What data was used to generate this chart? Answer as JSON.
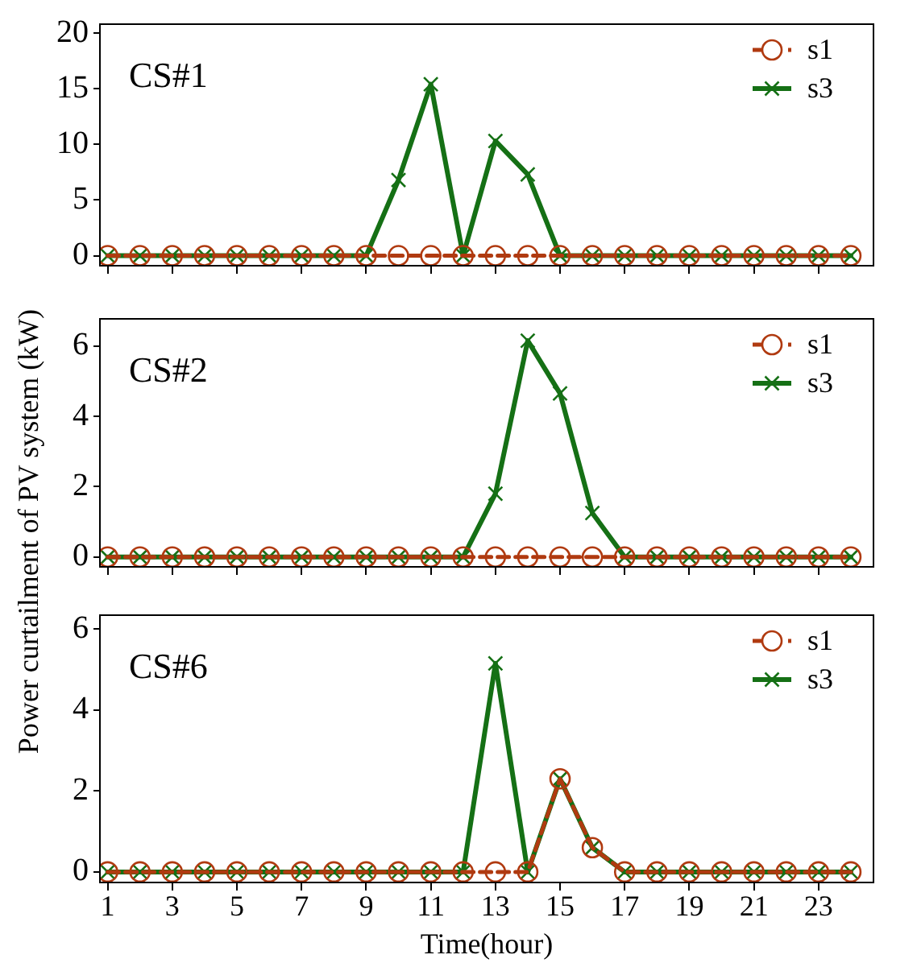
{
  "chart_data": [
    {
      "type": "line",
      "title": "CS#1",
      "x": [
        1,
        2,
        3,
        4,
        5,
        6,
        7,
        8,
        9,
        10,
        11,
        12,
        13,
        14,
        15,
        16,
        17,
        18,
        19,
        20,
        21,
        22,
        23,
        24
      ],
      "xlim": [
        0.76,
        24.7
      ],
      "xticks": [
        {
          "value": 1,
          "label": null
        },
        {
          "value": 3,
          "label": null
        },
        {
          "value": 5,
          "label": null
        },
        {
          "value": 7,
          "label": null
        },
        {
          "value": 9,
          "label": null
        },
        {
          "value": 11,
          "label": null
        },
        {
          "value": 13,
          "label": null
        },
        {
          "value": 15,
          "label": null
        },
        {
          "value": 17,
          "label": null
        },
        {
          "value": 19,
          "label": null
        },
        {
          "value": 21,
          "label": null
        },
        {
          "value": 23,
          "label": null
        }
      ],
      "ylim": [
        -0.9,
        20.8
      ],
      "yticks": [
        0,
        5,
        10,
        15,
        20
      ],
      "tick_labels": "y",
      "legend": "top right",
      "grid": false,
      "series": [
        {
          "name": "s1",
          "color": "#b03a10",
          "marker": "circle",
          "line_style": "dashed",
          "values": [
            0,
            0,
            0,
            0,
            0,
            0,
            0,
            0,
            0,
            0,
            0,
            0,
            0,
            0,
            0,
            0,
            0,
            0,
            0,
            0,
            0,
            0,
            0,
            0
          ]
        },
        {
          "name": "s3",
          "color": "#157015",
          "marker": "cross",
          "line_style": "solid",
          "values": [
            0,
            0,
            0,
            0,
            0,
            0,
            0,
            0,
            0,
            6.8,
            15.4,
            0,
            10.3,
            7.3,
            0,
            0,
            0,
            0,
            0,
            0,
            0,
            0,
            0,
            0
          ]
        }
      ]
    },
    {
      "type": "line",
      "title": "CS#2",
      "ylabel": "Power curtailment of PV system (kW)",
      "x": [
        1,
        2,
        3,
        4,
        5,
        6,
        7,
        8,
        9,
        10,
        11,
        12,
        13,
        14,
        15,
        16,
        17,
        18,
        19,
        20,
        21,
        22,
        23,
        24
      ],
      "xlim": [
        0.76,
        24.7
      ],
      "xticks": [
        {
          "value": 1,
          "label": null
        },
        {
          "value": 3,
          "label": null
        },
        {
          "value": 5,
          "label": null
        },
        {
          "value": 7,
          "label": null
        },
        {
          "value": 9,
          "label": null
        },
        {
          "value": 11,
          "label": null
        },
        {
          "value": 13,
          "label": null
        },
        {
          "value": 15,
          "label": null
        },
        {
          "value": 17,
          "label": null
        },
        {
          "value": 19,
          "label": null
        },
        {
          "value": 21,
          "label": null
        },
        {
          "value": 23,
          "label": null
        }
      ],
      "ylim": [
        -0.28,
        6.77
      ],
      "yticks": [
        0,
        2,
        4,
        6
      ],
      "tick_labels": "y",
      "legend": "top right",
      "grid": false,
      "series": [
        {
          "name": "s1",
          "color": "#b03a10",
          "marker": "circle",
          "line_style": "dashed",
          "values": [
            0,
            0,
            0,
            0,
            0,
            0,
            0,
            0,
            0,
            0,
            0,
            0,
            0,
            0,
            0,
            0,
            0,
            0,
            0,
            0,
            0,
            0,
            0,
            0
          ]
        },
        {
          "name": "s3",
          "color": "#157015",
          "marker": "cross",
          "line_style": "solid",
          "values": [
            0,
            0,
            0,
            0,
            0,
            0,
            0,
            0,
            0,
            0,
            0,
            0,
            1.8,
            6.15,
            4.65,
            1.25,
            0,
            0,
            0,
            0,
            0,
            0,
            0,
            0
          ]
        }
      ]
    },
    {
      "type": "line",
      "title": "CS#6",
      "xlabel": "Time(hour)",
      "x": [
        1,
        2,
        3,
        4,
        5,
        6,
        7,
        8,
        9,
        10,
        11,
        12,
        13,
        14,
        15,
        16,
        17,
        18,
        19,
        20,
        21,
        22,
        23,
        24
      ],
      "xlim": [
        0.76,
        24.7
      ],
      "xticks": [
        1,
        3,
        5,
        7,
        9,
        11,
        13,
        15,
        17,
        19,
        21,
        23
      ],
      "ylim": [
        -0.26,
        6.34
      ],
      "yticks": [
        0,
        2,
        4,
        6
      ],
      "legend": "top right",
      "grid": false,
      "series": [
        {
          "name": "s1",
          "color": "#b03a10",
          "marker": "circle",
          "line_style": "dashed",
          "values": [
            0,
            0,
            0,
            0,
            0,
            0,
            0,
            0,
            0,
            0,
            0,
            0,
            0,
            0,
            2.3,
            0.6,
            0,
            0,
            0,
            0,
            0,
            0,
            0,
            0
          ]
        },
        {
          "name": "s3",
          "color": "#157015",
          "marker": "cross",
          "line_style": "solid",
          "values": [
            0,
            0,
            0,
            0,
            0,
            0,
            0,
            0,
            0,
            0,
            0,
            0,
            5.15,
            0,
            2.3,
            0.6,
            0,
            0,
            0,
            0,
            0,
            0,
            0,
            0
          ]
        }
      ]
    }
  ]
}
